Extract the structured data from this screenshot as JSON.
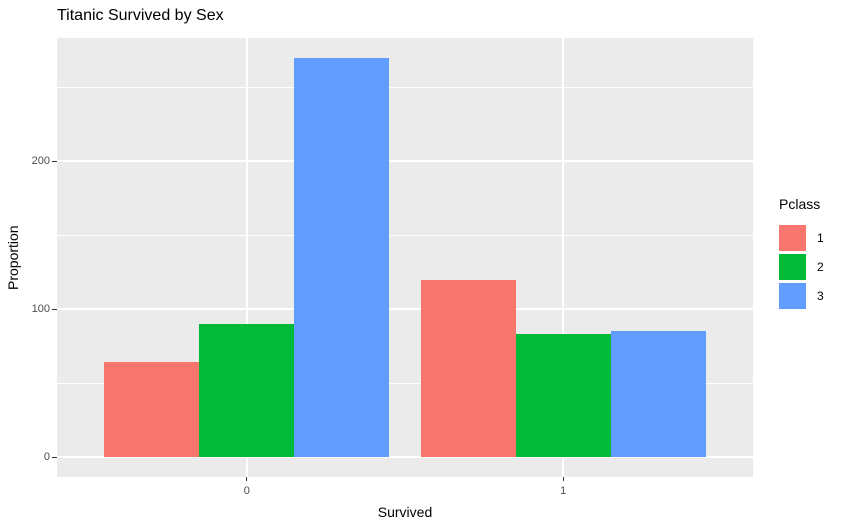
{
  "chart_data": {
    "type": "bar",
    "bar_mode": "dodge",
    "title": "Titanic Survived by Sex",
    "xlabel": "Survived",
    "ylabel": "Proportion",
    "categories": [
      "0",
      "1"
    ],
    "series": [
      {
        "name": "1",
        "color": "#F8766D",
        "values": [
          64,
          120
        ]
      },
      {
        "name": "2",
        "color": "#00BA38",
        "values": [
          90,
          83
        ]
      },
      {
        "name": "3",
        "color": "#619CFF",
        "values": [
          270,
          85
        ]
      }
    ],
    "legend_title": "Pclass",
    "legend_position": "right",
    "y_ticks": [
      0,
      100,
      200
    ],
    "y_tick_labels": [
      "0",
      "100",
      "200"
    ],
    "y_minor_ticks": [
      50,
      150,
      250
    ],
    "ylim": [
      -13.5,
      283.5
    ],
    "grid": true,
    "colors": {
      "background": "#FFFFFF",
      "panel_background": "#EBEBEB",
      "gridline": "#FFFFFF",
      "tick_label": "#4D4D4D",
      "tick_mark": "#333333",
      "text": "#000000"
    }
  }
}
